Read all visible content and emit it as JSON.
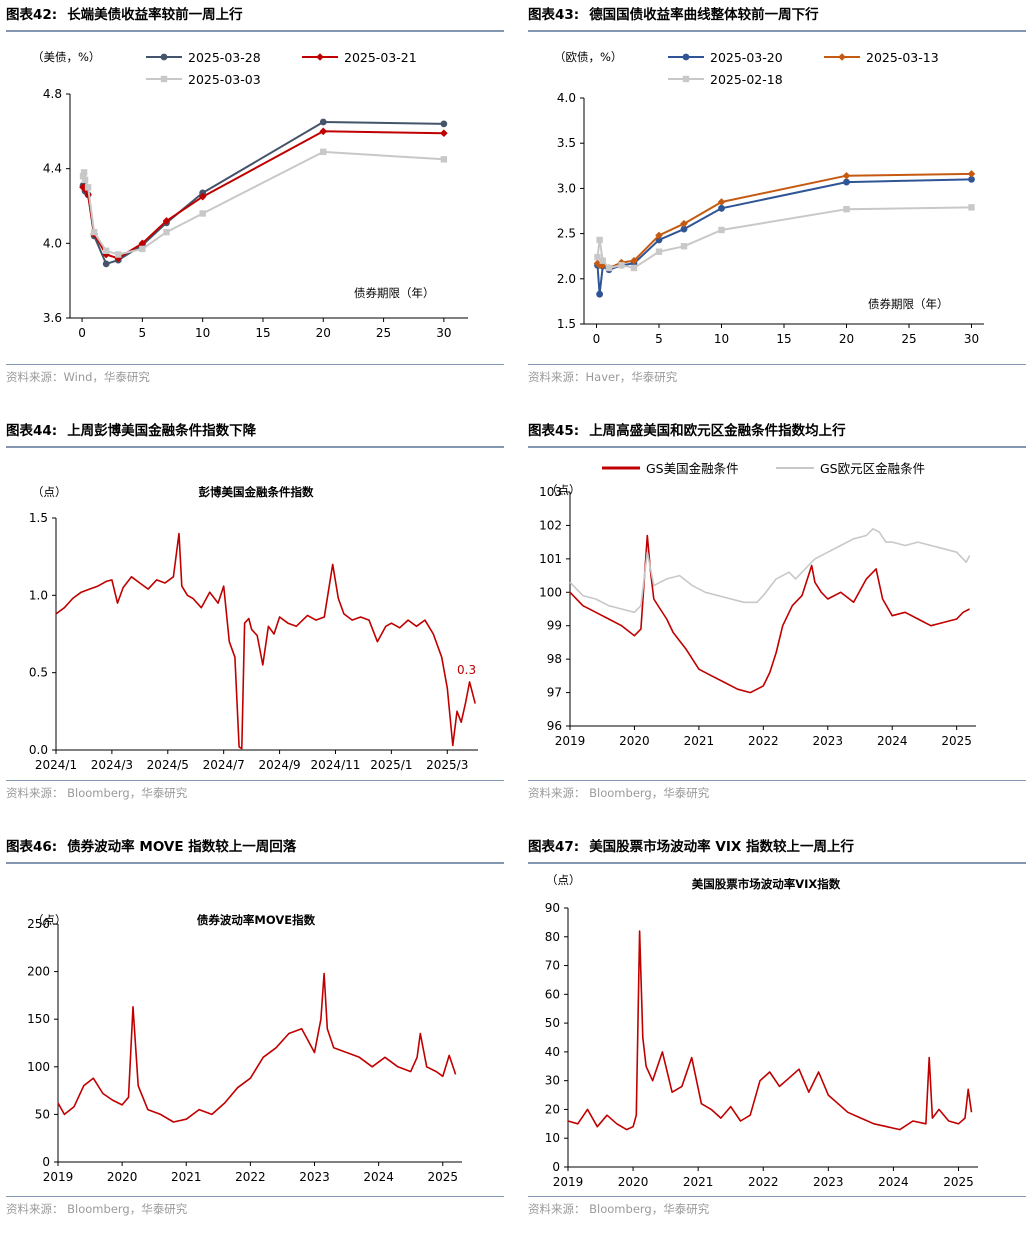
{
  "panels": [
    {
      "id": "p42",
      "num": "图表42:",
      "title": "长端美债收益率较前一周上行",
      "source": "资料来源：Wind，华泰研究"
    },
    {
      "id": "p43",
      "num": "图表43:",
      "title": "德国国债收益率曲线整体较前一周下行",
      "source": "资料来源：Haver，华泰研究"
    },
    {
      "id": "p44",
      "num": "图表44:",
      "title": "上周彭博美国金融条件指数下降",
      "source": "资料来源：  Bloomberg，华泰研究"
    },
    {
      "id": "p45",
      "num": "图表45:",
      "title": "上周高盛美国和欧元区金融条件指数均上行",
      "source": "资料来源：  Bloomberg，华泰研究"
    },
    {
      "id": "p46",
      "num": "图表46:",
      "title": "债券波动率 MOVE 指数较上一周回落",
      "source": "资料来源：  Bloomberg，华泰研究"
    },
    {
      "id": "p47",
      "num": "图表47:",
      "title": "美国股票市场波动率 VIX 指数较上一周上行",
      "source": "资料来源：  Bloomberg，华泰研究"
    }
  ],
  "chart_data": [
    {
      "id": "p42",
      "type": "line",
      "unit": "（美债，%）",
      "xlabel": "债券期限（年）",
      "xlim": [
        -1,
        32
      ],
      "ylim": [
        3.6,
        4.8
      ],
      "xticks": [
        0,
        5,
        10,
        15,
        20,
        25,
        30
      ],
      "yticks": [
        3.6,
        4.0,
        4.4,
        4.8
      ],
      "x": [
        0.08,
        0.17,
        0.25,
        0.5,
        1,
        2,
        3,
        5,
        7,
        10,
        20,
        30
      ],
      "series": [
        {
          "name": "2025-03-28",
          "color": "#44546a",
          "marker": "circle",
          "values": [
            4.31,
            4.3,
            4.28,
            4.26,
            4.04,
            3.89,
            3.91,
            3.99,
            4.11,
            4.27,
            4.65,
            4.64
          ]
        },
        {
          "name": "2025-03-21",
          "color": "#c00000",
          "marker": "diamond",
          "values": [
            4.3,
            4.3,
            4.29,
            4.26,
            4.05,
            3.94,
            3.92,
            4.0,
            4.12,
            4.25,
            4.6,
            4.59
          ]
        },
        {
          "name": "2025-03-03",
          "color": "#c8c8c8",
          "marker": "square",
          "values": [
            4.36,
            4.38,
            4.34,
            4.3,
            4.06,
            3.96,
            3.94,
            3.97,
            4.06,
            4.16,
            4.49,
            4.45
          ]
        }
      ]
    },
    {
      "id": "p43",
      "type": "line",
      "unit": "（欧债，%）",
      "xlabel": "债券期限（年）",
      "xlim": [
        -1,
        31
      ],
      "ylim": [
        1.5,
        4.0
      ],
      "xticks": [
        0,
        5,
        10,
        15,
        20,
        25,
        30
      ],
      "yticks": [
        1.5,
        2.0,
        2.5,
        3.0,
        3.5,
        4.0
      ],
      "x": [
        0.08,
        0.25,
        0.5,
        1,
        2,
        3,
        5,
        7,
        10,
        20,
        30
      ],
      "series": [
        {
          "name": "2025-03-20",
          "color": "#2f5597",
          "marker": "circle",
          "values": [
            2.15,
            1.83,
            2.14,
            2.1,
            2.15,
            2.17,
            2.43,
            2.55,
            2.78,
            3.07,
            3.1
          ]
        },
        {
          "name": "2025-03-13",
          "color": "#c55a11",
          "marker": "diamond",
          "values": [
            2.17,
            2.15,
            2.15,
            2.12,
            2.18,
            2.2,
            2.48,
            2.61,
            2.85,
            3.14,
            3.16
          ]
        },
        {
          "name": "2025-02-18",
          "color": "#c8c8c8",
          "marker": "square",
          "values": [
            2.24,
            2.43,
            2.2,
            2.12,
            2.15,
            2.12,
            2.3,
            2.36,
            2.54,
            2.77,
            2.79
          ]
        }
      ]
    },
    {
      "id": "p44",
      "type": "line",
      "unit": "（点）",
      "title": "彭博美国金融条件指数",
      "xlim": [
        0,
        15.1
      ],
      "ylim": [
        0.0,
        1.5
      ],
      "xticks": [
        0,
        2,
        4,
        6,
        8,
        10,
        12,
        14
      ],
      "xticklabels": [
        "2024/1",
        "2024/3",
        "2024/5",
        "2024/7",
        "2024/9",
        "2024/11",
        "2025/1",
        "2025/3"
      ],
      "yticks": [
        0.0,
        0.5,
        1.0,
        1.5
      ],
      "annotation": "0.3",
      "series": [
        {
          "name": "彭博美国金融条件指数",
          "color": "#c00000",
          "x": [
            0,
            0.3,
            0.6,
            0.9,
            1.2,
            1.5,
            1.8,
            2.0,
            2.2,
            2.4,
            2.7,
            3.0,
            3.3,
            3.6,
            3.9,
            4.2,
            4.4,
            4.5,
            4.7,
            4.9,
            5.2,
            5.5,
            5.8,
            6.0,
            6.2,
            6.4,
            6.55,
            6.65,
            6.75,
            6.9,
            7.0,
            7.2,
            7.4,
            7.6,
            7.8,
            8.0,
            8.3,
            8.6,
            9.0,
            9.3,
            9.6,
            9.9,
            10.1,
            10.3,
            10.6,
            10.9,
            11.2,
            11.5,
            11.8,
            12.0,
            12.3,
            12.6,
            12.9,
            13.2,
            13.5,
            13.8,
            14.0,
            14.2,
            14.35,
            14.5,
            14.65,
            14.8,
            15.0
          ],
          "values": [
            0.88,
            0.92,
            0.98,
            1.02,
            1.04,
            1.06,
            1.09,
            1.1,
            0.95,
            1.05,
            1.12,
            1.08,
            1.04,
            1.1,
            1.08,
            1.12,
            1.4,
            1.06,
            1.0,
            0.98,
            0.92,
            1.02,
            0.95,
            1.06,
            0.7,
            0.6,
            0.02,
            0.01,
            0.82,
            0.85,
            0.78,
            0.74,
            0.55,
            0.8,
            0.75,
            0.86,
            0.82,
            0.8,
            0.87,
            0.84,
            0.86,
            1.2,
            0.98,
            0.88,
            0.84,
            0.86,
            0.84,
            0.7,
            0.8,
            0.82,
            0.79,
            0.84,
            0.8,
            0.84,
            0.75,
            0.6,
            0.4,
            0.03,
            0.25,
            0.18,
            0.3,
            0.44,
            0.3
          ]
        }
      ]
    },
    {
      "id": "p45",
      "type": "line",
      "unit": "（点）",
      "xlim": [
        0,
        6.3
      ],
      "ylim": [
        96,
        103
      ],
      "xticks": [
        0,
        1,
        2,
        3,
        4,
        5,
        6
      ],
      "xticklabels": [
        "2019",
        "2020",
        "2021",
        "2022",
        "2023",
        "2024",
        "2025"
      ],
      "yticks": [
        96,
        97,
        98,
        99,
        100,
        101,
        102,
        103
      ],
      "series": [
        {
          "name": "GS美国金融条件",
          "color": "#c00000",
          "x": [
            0,
            0.2,
            0.4,
            0.6,
            0.8,
            1.0,
            1.1,
            1.2,
            1.25,
            1.3,
            1.4,
            1.5,
            1.6,
            1.8,
            2.0,
            2.2,
            2.4,
            2.6,
            2.8,
            3.0,
            3.1,
            3.2,
            3.3,
            3.45,
            3.6,
            3.75,
            3.8,
            3.9,
            4.0,
            4.2,
            4.4,
            4.6,
            4.75,
            4.85,
            5.0,
            5.2,
            5.4,
            5.6,
            5.8,
            6.0,
            6.1,
            6.2
          ],
          "values": [
            100.0,
            99.6,
            99.4,
            99.2,
            99.0,
            98.7,
            98.9,
            101.7,
            100.6,
            99.8,
            99.5,
            99.2,
            98.8,
            98.3,
            97.7,
            97.5,
            97.3,
            97.1,
            97.0,
            97.2,
            97.6,
            98.2,
            99.0,
            99.6,
            99.9,
            100.8,
            100.3,
            100.0,
            99.8,
            100.0,
            99.7,
            100.4,
            100.7,
            99.8,
            99.3,
            99.4,
            99.2,
            99.0,
            99.1,
            99.2,
            99.4,
            99.5
          ]
        },
        {
          "name": "GS欧元区金融条件",
          "color": "#c8c8c8",
          "x": [
            0,
            0.2,
            0.4,
            0.6,
            0.8,
            1.0,
            1.1,
            1.2,
            1.3,
            1.5,
            1.7,
            1.9,
            2.1,
            2.3,
            2.5,
            2.7,
            2.9,
            3.0,
            3.2,
            3.4,
            3.5,
            3.7,
            3.8,
            4.0,
            4.2,
            4.4,
            4.6,
            4.7,
            4.8,
            4.9,
            5.0,
            5.2,
            5.4,
            5.6,
            5.8,
            6.0,
            6.1,
            6.15,
            6.2
          ],
          "values": [
            100.3,
            99.9,
            99.8,
            99.6,
            99.5,
            99.4,
            99.6,
            101.2,
            100.2,
            100.4,
            100.5,
            100.2,
            100.0,
            99.9,
            99.8,
            99.7,
            99.7,
            99.9,
            100.4,
            100.6,
            100.4,
            100.8,
            101.0,
            101.2,
            101.4,
            101.6,
            101.7,
            101.9,
            101.8,
            101.5,
            101.5,
            101.4,
            101.5,
            101.4,
            101.3,
            101.2,
            101.0,
            100.9,
            101.1
          ]
        }
      ]
    },
    {
      "id": "p46",
      "type": "line",
      "unit": "（点）",
      "title": "债券波动率MOVE指数",
      "xlim": [
        0,
        6.3
      ],
      "ylim": [
        0,
        250
      ],
      "xticks": [
        0,
        1,
        2,
        3,
        4,
        5,
        6
      ],
      "xticklabels": [
        "2019",
        "2020",
        "2021",
        "2022",
        "2023",
        "2024",
        "2025"
      ],
      "yticks": [
        0,
        50,
        100,
        150,
        200,
        250
      ],
      "series": [
        {
          "name": "债券波动率MOVE指数",
          "color": "#c00000",
          "x": [
            0,
            0.1,
            0.25,
            0.4,
            0.55,
            0.7,
            0.85,
            1.0,
            1.1,
            1.17,
            1.25,
            1.4,
            1.6,
            1.8,
            2.0,
            2.2,
            2.4,
            2.6,
            2.8,
            3.0,
            3.2,
            3.4,
            3.6,
            3.8,
            4.0,
            4.1,
            4.15,
            4.2,
            4.3,
            4.5,
            4.7,
            4.9,
            5.1,
            5.3,
            5.5,
            5.6,
            5.65,
            5.75,
            5.9,
            6.0,
            6.1,
            6.2
          ],
          "values": [
            62,
            50,
            58,
            80,
            88,
            72,
            65,
            60,
            68,
            163,
            80,
            55,
            50,
            42,
            45,
            55,
            50,
            62,
            78,
            88,
            110,
            120,
            135,
            140,
            115,
            150,
            198,
            140,
            120,
            115,
            110,
            100,
            110,
            100,
            95,
            110,
            135,
            100,
            95,
            90,
            112,
            92
          ]
        }
      ]
    },
    {
      "id": "p47",
      "type": "line",
      "unit": "（点）",
      "title": "美国股票市场波动率VIX指数",
      "xlim": [
        0,
        6.3
      ],
      "ylim": [
        0,
        90
      ],
      "xticks": [
        0,
        1,
        2,
        3,
        4,
        5,
        6
      ],
      "xticklabels": [
        "2019",
        "2020",
        "2021",
        "2022",
        "2023",
        "2024",
        "2025"
      ],
      "yticks": [
        0,
        10,
        20,
        30,
        40,
        50,
        60,
        70,
        80,
        90
      ],
      "series": [
        {
          "name": "美国股票市场波动率VIX指数",
          "color": "#c00000",
          "x": [
            0,
            0.15,
            0.3,
            0.45,
            0.6,
            0.75,
            0.9,
            1.0,
            1.05,
            1.1,
            1.15,
            1.2,
            1.3,
            1.45,
            1.6,
            1.75,
            1.9,
            2.05,
            2.2,
            2.35,
            2.5,
            2.65,
            2.8,
            2.95,
            3.1,
            3.25,
            3.4,
            3.55,
            3.7,
            3.85,
            4.0,
            4.15,
            4.3,
            4.5,
            4.7,
            4.9,
            5.1,
            5.3,
            5.5,
            5.55,
            5.6,
            5.7,
            5.85,
            6.0,
            6.1,
            6.15,
            6.2
          ],
          "values": [
            16,
            15,
            20,
            14,
            18,
            15,
            13,
            14,
            18,
            82,
            45,
            35,
            30,
            40,
            26,
            28,
            38,
            22,
            20,
            17,
            21,
            16,
            18,
            30,
            33,
            28,
            31,
            34,
            26,
            33,
            25,
            22,
            19,
            17,
            15,
            14,
            13,
            16,
            15,
            38,
            17,
            20,
            16,
            15,
            17,
            27,
            19
          ]
        }
      ]
    }
  ],
  "legends": {
    "p45": [
      "GS美国金融条件",
      "GS欧元区金融条件"
    ]
  }
}
